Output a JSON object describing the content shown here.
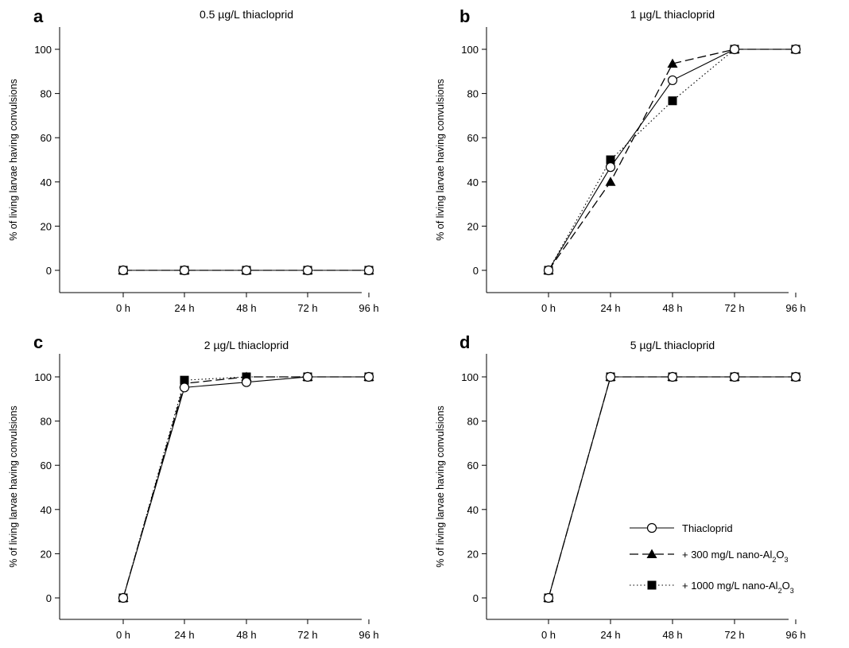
{
  "chart_data": [
    {
      "type": "line",
      "panel": "a",
      "title": "0.5 µg/L thiacloprid",
      "ylabel": "% of living larvae having convulsions",
      "categories": [
        "0 h",
        "24 h",
        "48 h",
        "72 h",
        "96 h"
      ],
      "ylim": [
        -10,
        110
      ],
      "yticks": [
        0,
        20,
        40,
        60,
        80,
        100
      ],
      "series": [
        {
          "name": "Thiacloprid",
          "values": [
            0,
            0,
            0,
            0,
            0
          ]
        },
        {
          "name": "+ 300 mg/L nano-Al2O3",
          "values": [
            0,
            0,
            0,
            0,
            0
          ]
        },
        {
          "name": "+ 1000 mg/L nano-Al2O3",
          "values": [
            0,
            0,
            0,
            0,
            0
          ]
        }
      ]
    },
    {
      "type": "line",
      "panel": "b",
      "title": "1 µg/L thiacloprid",
      "ylabel": "% of living larvae having convulsions",
      "categories": [
        "0 h",
        "24 h",
        "48 h",
        "72 h",
        "96 h"
      ],
      "ylim": [
        -10,
        110
      ],
      "yticks": [
        0,
        20,
        40,
        60,
        80,
        100
      ],
      "series": [
        {
          "name": "Thiacloprid",
          "values": [
            0,
            46.7,
            86,
            100,
            100
          ]
        },
        {
          "name": "+ 300 mg/L nano-Al2O3",
          "values": [
            0,
            40,
            93.5,
            100,
            100
          ]
        },
        {
          "name": "+ 1000 mg/L nano-Al2O3",
          "values": [
            0,
            50,
            76.7,
            100,
            100
          ]
        }
      ]
    },
    {
      "type": "line",
      "panel": "c",
      "title": "2 µg/L thiacloprid",
      "ylabel": "% of living larvae having convulsions",
      "categories": [
        "0 h",
        "24 h",
        "48 h",
        "72 h",
        "96 h"
      ],
      "ylim": [
        -10,
        110
      ],
      "yticks": [
        0,
        20,
        40,
        60,
        80,
        100
      ],
      "series": [
        {
          "name": "Thiacloprid",
          "values": [
            0,
            95.2,
            97.6,
            100,
            100
          ]
        },
        {
          "name": "+ 300 mg/L nano-Al2O3",
          "values": [
            0,
            97,
            100,
            100,
            100
          ]
        },
        {
          "name": "+ 1000 mg/L nano-Al2O3",
          "values": [
            0,
            98.5,
            100,
            100,
            100
          ]
        }
      ]
    },
    {
      "type": "line",
      "panel": "d",
      "title": "5 µg/L thiacloprid",
      "ylabel": "% of living larvae having convulsions",
      "categories": [
        "0 h",
        "24 h",
        "48 h",
        "72 h",
        "96 h"
      ],
      "ylim": [
        -10,
        110
      ],
      "yticks": [
        0,
        20,
        40,
        60,
        80,
        100
      ],
      "series": [
        {
          "name": "Thiacloprid",
          "values": [
            0,
            100,
            100,
            100,
            100
          ]
        },
        {
          "name": "+ 300 mg/L nano-Al2O3",
          "values": [
            0,
            100,
            100,
            100,
            100
          ]
        },
        {
          "name": "+ 1000 mg/L nano-Al2O3",
          "values": [
            0,
            100,
            100,
            100,
            100
          ]
        }
      ]
    }
  ],
  "legend": {
    "items": [
      {
        "text": "Thiacloprid",
        "sub": "",
        "tail": "",
        "marker": "circle",
        "line": "solid"
      },
      {
        "text": "+ 300 mg/L nano-Al",
        "sub": "2",
        "tail": "O",
        "sub2": "3",
        "marker": "triangle",
        "line": "dashed"
      },
      {
        "text": "+ 1000 mg/L nano-Al",
        "sub": "2",
        "tail": "O",
        "sub2": "3",
        "marker": "square",
        "line": "dotted"
      }
    ]
  },
  "colors": {
    "line": "#000000",
    "marker_fill": "#000000",
    "open_marker_fill": "#ffffff"
  }
}
